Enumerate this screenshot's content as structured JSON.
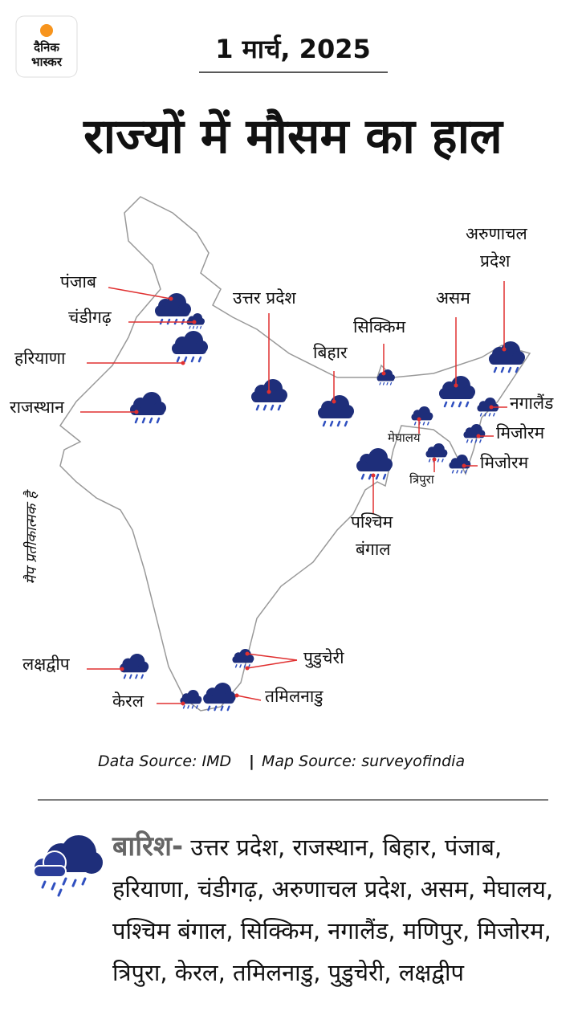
{
  "logo": {
    "line1": "दैनिक",
    "line2": "भास्कर"
  },
  "header": {
    "date": "1 मार्च, 2025",
    "title": "राज्यों में मौसम का हाल"
  },
  "map": {
    "labels": [
      {
        "lines": [
          "पंजाब"
        ]
      },
      {
        "lines": [
          "चंडीगढ़"
        ]
      },
      {
        "lines": [
          "हरियाणा"
        ]
      },
      {
        "lines": [
          "राजस्थान"
        ]
      },
      {
        "lines": [
          "उत्तर प्रदेश"
        ]
      },
      {
        "lines": [
          "बिहार"
        ]
      },
      {
        "lines": [
          "सिक्किम"
        ]
      },
      {
        "lines": [
          "असम"
        ]
      },
      {
        "lines": [
          "अरुणाचल",
          "प्रदेश"
        ]
      },
      {
        "lines": [
          "नगालैंड"
        ]
      },
      {
        "lines": [
          "मेघालय"
        ]
      },
      {
        "lines": [
          "मिजोरम"
        ]
      },
      {
        "lines": [
          "त्रिपुरा"
        ]
      },
      {
        "lines": [
          "मिजोरम"
        ]
      },
      {
        "lines": [
          "पश्चिम",
          "बंगाल"
        ]
      },
      {
        "lines": [
          "लक्षद्वीप"
        ]
      },
      {
        "lines": [
          "केरल"
        ]
      },
      {
        "lines": [
          "तमिलनाडु"
        ]
      },
      {
        "lines": [
          "पुडुचेरी"
        ]
      }
    ],
    "disclaimer": "मैप प्रतीकात्मक है"
  },
  "source": {
    "data": "Data Source: IMD",
    "map": "Map Source: surveyofindia"
  },
  "legend": {
    "label": "बारिश-",
    "states": "उत्तर प्रदेश, राजस्थान, बिहार, पंजाब, हरियाणा, चंडीगढ़, अरुणाचल प्रदेश, असम, मेघालय, पश्चिम बंगाल, सिक्किम, नगालैंड, मणिपुर, मिजोरम, त्रिपुरा, केरल, तमिलनाडु, पुडुचेरी, लक्षद्वीप"
  }
}
